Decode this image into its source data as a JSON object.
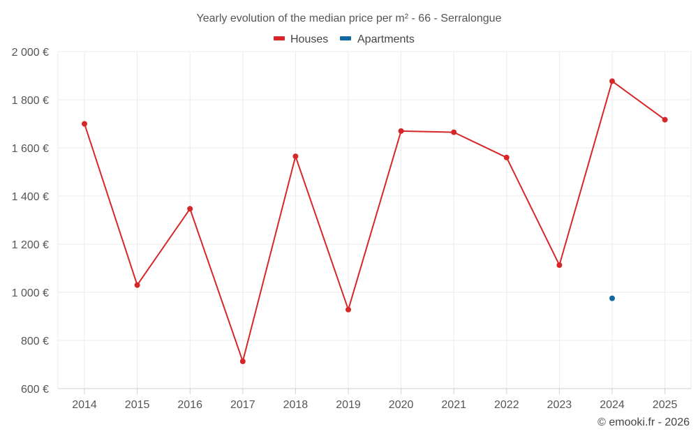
{
  "chart_data": {
    "type": "line",
    "title": "Yearly evolution of the median price per m² - 66 - Serralongue",
    "categories": [
      "2014",
      "2015",
      "2016",
      "2017",
      "2018",
      "2019",
      "2020",
      "2021",
      "2022",
      "2023",
      "2024",
      "2025"
    ],
    "series": [
      {
        "name": "Houses",
        "color": "#d62728",
        "values": [
          1700,
          1030,
          1347,
          713,
          1565,
          928,
          1670,
          1665,
          1560,
          1113,
          1877,
          1717
        ]
      },
      {
        "name": "Apartments",
        "color": "#0e6aa0",
        "values": [
          null,
          null,
          null,
          null,
          null,
          null,
          null,
          null,
          null,
          null,
          975,
          null
        ]
      }
    ],
    "ylim": [
      600,
      2000
    ],
    "yticks": [
      600,
      800,
      1000,
      1200,
      1400,
      1600,
      1800,
      2000
    ],
    "ytick_labels": [
      "600 €",
      "800 €",
      "1 000 €",
      "1 200 €",
      "1 400 €",
      "1 600 €",
      "1 800 €",
      "2 000 €"
    ],
    "xlabel": "",
    "ylabel": "",
    "grid": true,
    "legend_position": "top-center"
  },
  "footer": {
    "credit": "© emooki.fr - 2026"
  }
}
